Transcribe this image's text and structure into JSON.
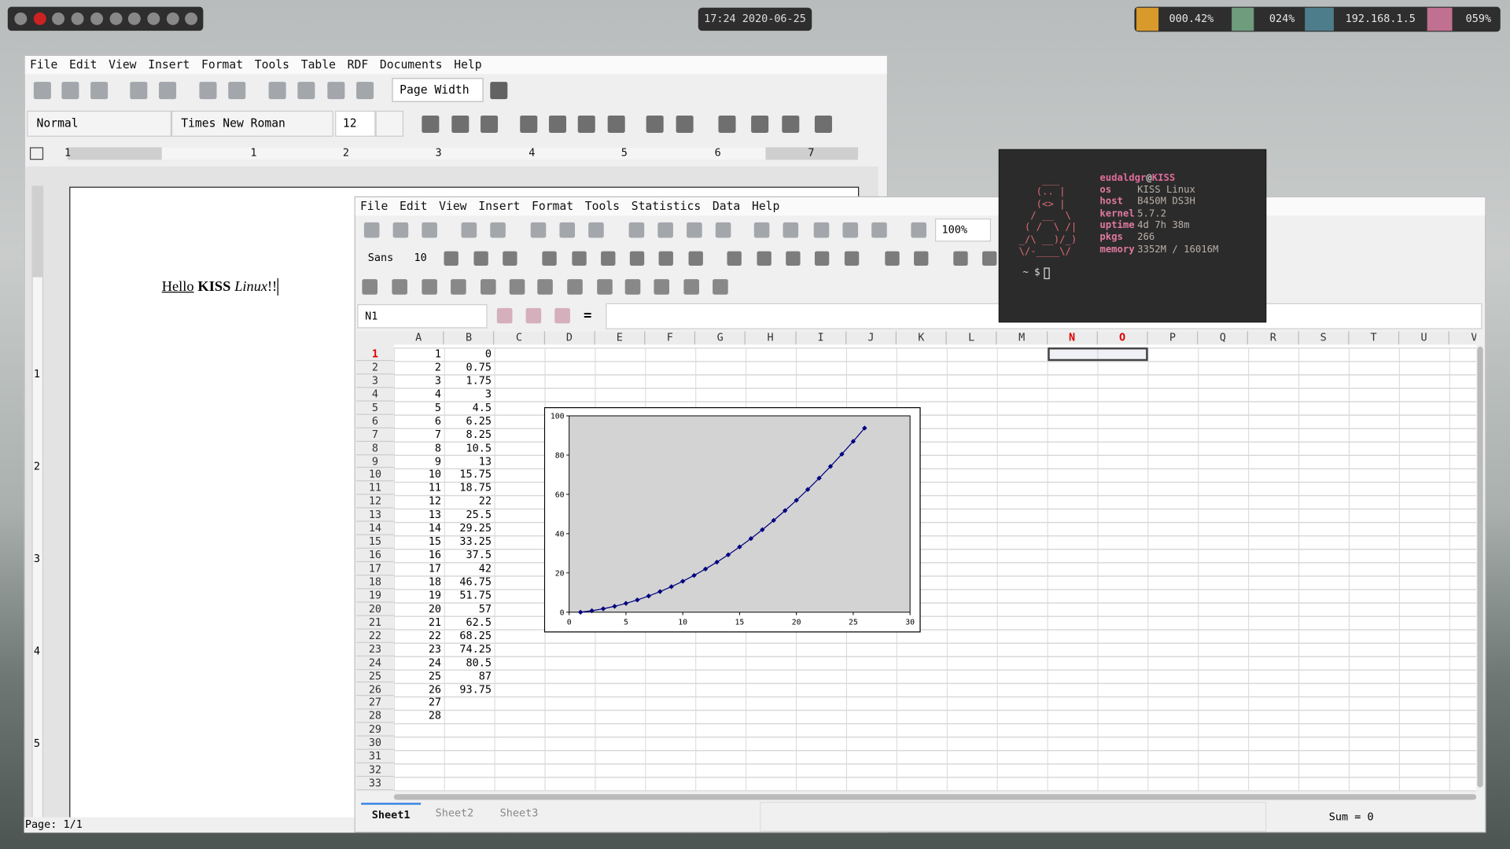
{
  "topbar": {
    "clock": "17:24 2020-06-25",
    "cpu": "000.42%",
    "mem": "024%",
    "ip": "192.168.1.5",
    "volume": "059%"
  },
  "writer": {
    "menu": [
      "File",
      "Edit",
      "View",
      "Insert",
      "Format",
      "Tools",
      "Table",
      "RDF",
      "Documents",
      "Help"
    ],
    "zoom": "Page Width",
    "style": "Normal",
    "font": "Times New Roman",
    "size": "12",
    "ruler": [
      "1",
      "1",
      "2",
      "3",
      "4",
      "5",
      "6",
      "7"
    ],
    "vruler": [
      "1",
      "2",
      "3",
      "4",
      "5"
    ],
    "document": {
      "hello": "Hello",
      "kiss": "KISS",
      "linux": "Linux",
      "end": "!!"
    },
    "status": "Page: 1/1"
  },
  "spreadsheet": {
    "menu": [
      "File",
      "Edit",
      "View",
      "Insert",
      "Format",
      "Tools",
      "Statistics",
      "Data",
      "Help"
    ],
    "zoom": "100%",
    "font": "Sans",
    "size": "10",
    "cell_ref": "N1",
    "equals": "=",
    "columns": [
      "A",
      "B",
      "C",
      "D",
      "E",
      "F",
      "G",
      "H",
      "I",
      "J",
      "K",
      "L",
      "M",
      "N",
      "O",
      "P",
      "Q",
      "R",
      "S",
      "T",
      "U",
      "V"
    ],
    "rows": [
      1,
      2,
      3,
      4,
      5,
      6,
      7,
      8,
      9,
      10,
      11,
      12,
      13,
      14,
      15,
      16,
      17,
      18,
      19,
      20,
      21,
      22,
      23,
      24,
      25,
      26,
      27,
      28,
      29,
      30,
      31,
      32,
      33
    ],
    "sheets": [
      "Sheet1",
      "Sheet2",
      "Sheet3"
    ],
    "status": "Sum = 0"
  },
  "chart_data": {
    "type": "line",
    "x": [
      1,
      2,
      3,
      4,
      5,
      6,
      7,
      8,
      9,
      10,
      11,
      12,
      13,
      14,
      15,
      16,
      17,
      18,
      19,
      20,
      21,
      22,
      23,
      24,
      25,
      26,
      27,
      28
    ],
    "series": [
      {
        "color": "#00007f",
        "values": [
          0,
          0.75,
          1.75,
          3,
          4.5,
          6.25,
          8.25,
          10.5,
          13,
          15.75,
          18.75,
          22,
          25.5,
          29.25,
          33.25,
          37.5,
          42,
          46.75,
          51.75,
          57,
          62.5,
          68.25,
          74.25,
          80.5,
          87,
          93.75,
          null,
          null
        ]
      }
    ],
    "xlim": [
      0,
      30
    ],
    "xticks": [
      0,
      5,
      10,
      15,
      20,
      25,
      30
    ],
    "ylim": [
      0,
      100
    ],
    "yticks": [
      0,
      20,
      40,
      60,
      80,
      100
    ],
    "grid": false,
    "markers": true
  },
  "terminal": {
    "art": [
      "    ___",
      "   (.. |",
      "   (<> |",
      "  / __  \\",
      " ( /  \\ /|",
      "_/\\ __)/_)",
      "\\/-____\\/"
    ],
    "user": "eudaldgr",
    "at": "@",
    "host": "KISS",
    "fields": [
      [
        "os",
        "KISS Linux"
      ],
      [
        "host",
        "B450M DS3H"
      ],
      [
        "kernel",
        "5.7.2"
      ],
      [
        "uptime",
        "4d 7h 38m"
      ],
      [
        "pkgs",
        "266"
      ],
      [
        "memory",
        "3352M / 16016M"
      ]
    ],
    "prompt": "~ $"
  }
}
